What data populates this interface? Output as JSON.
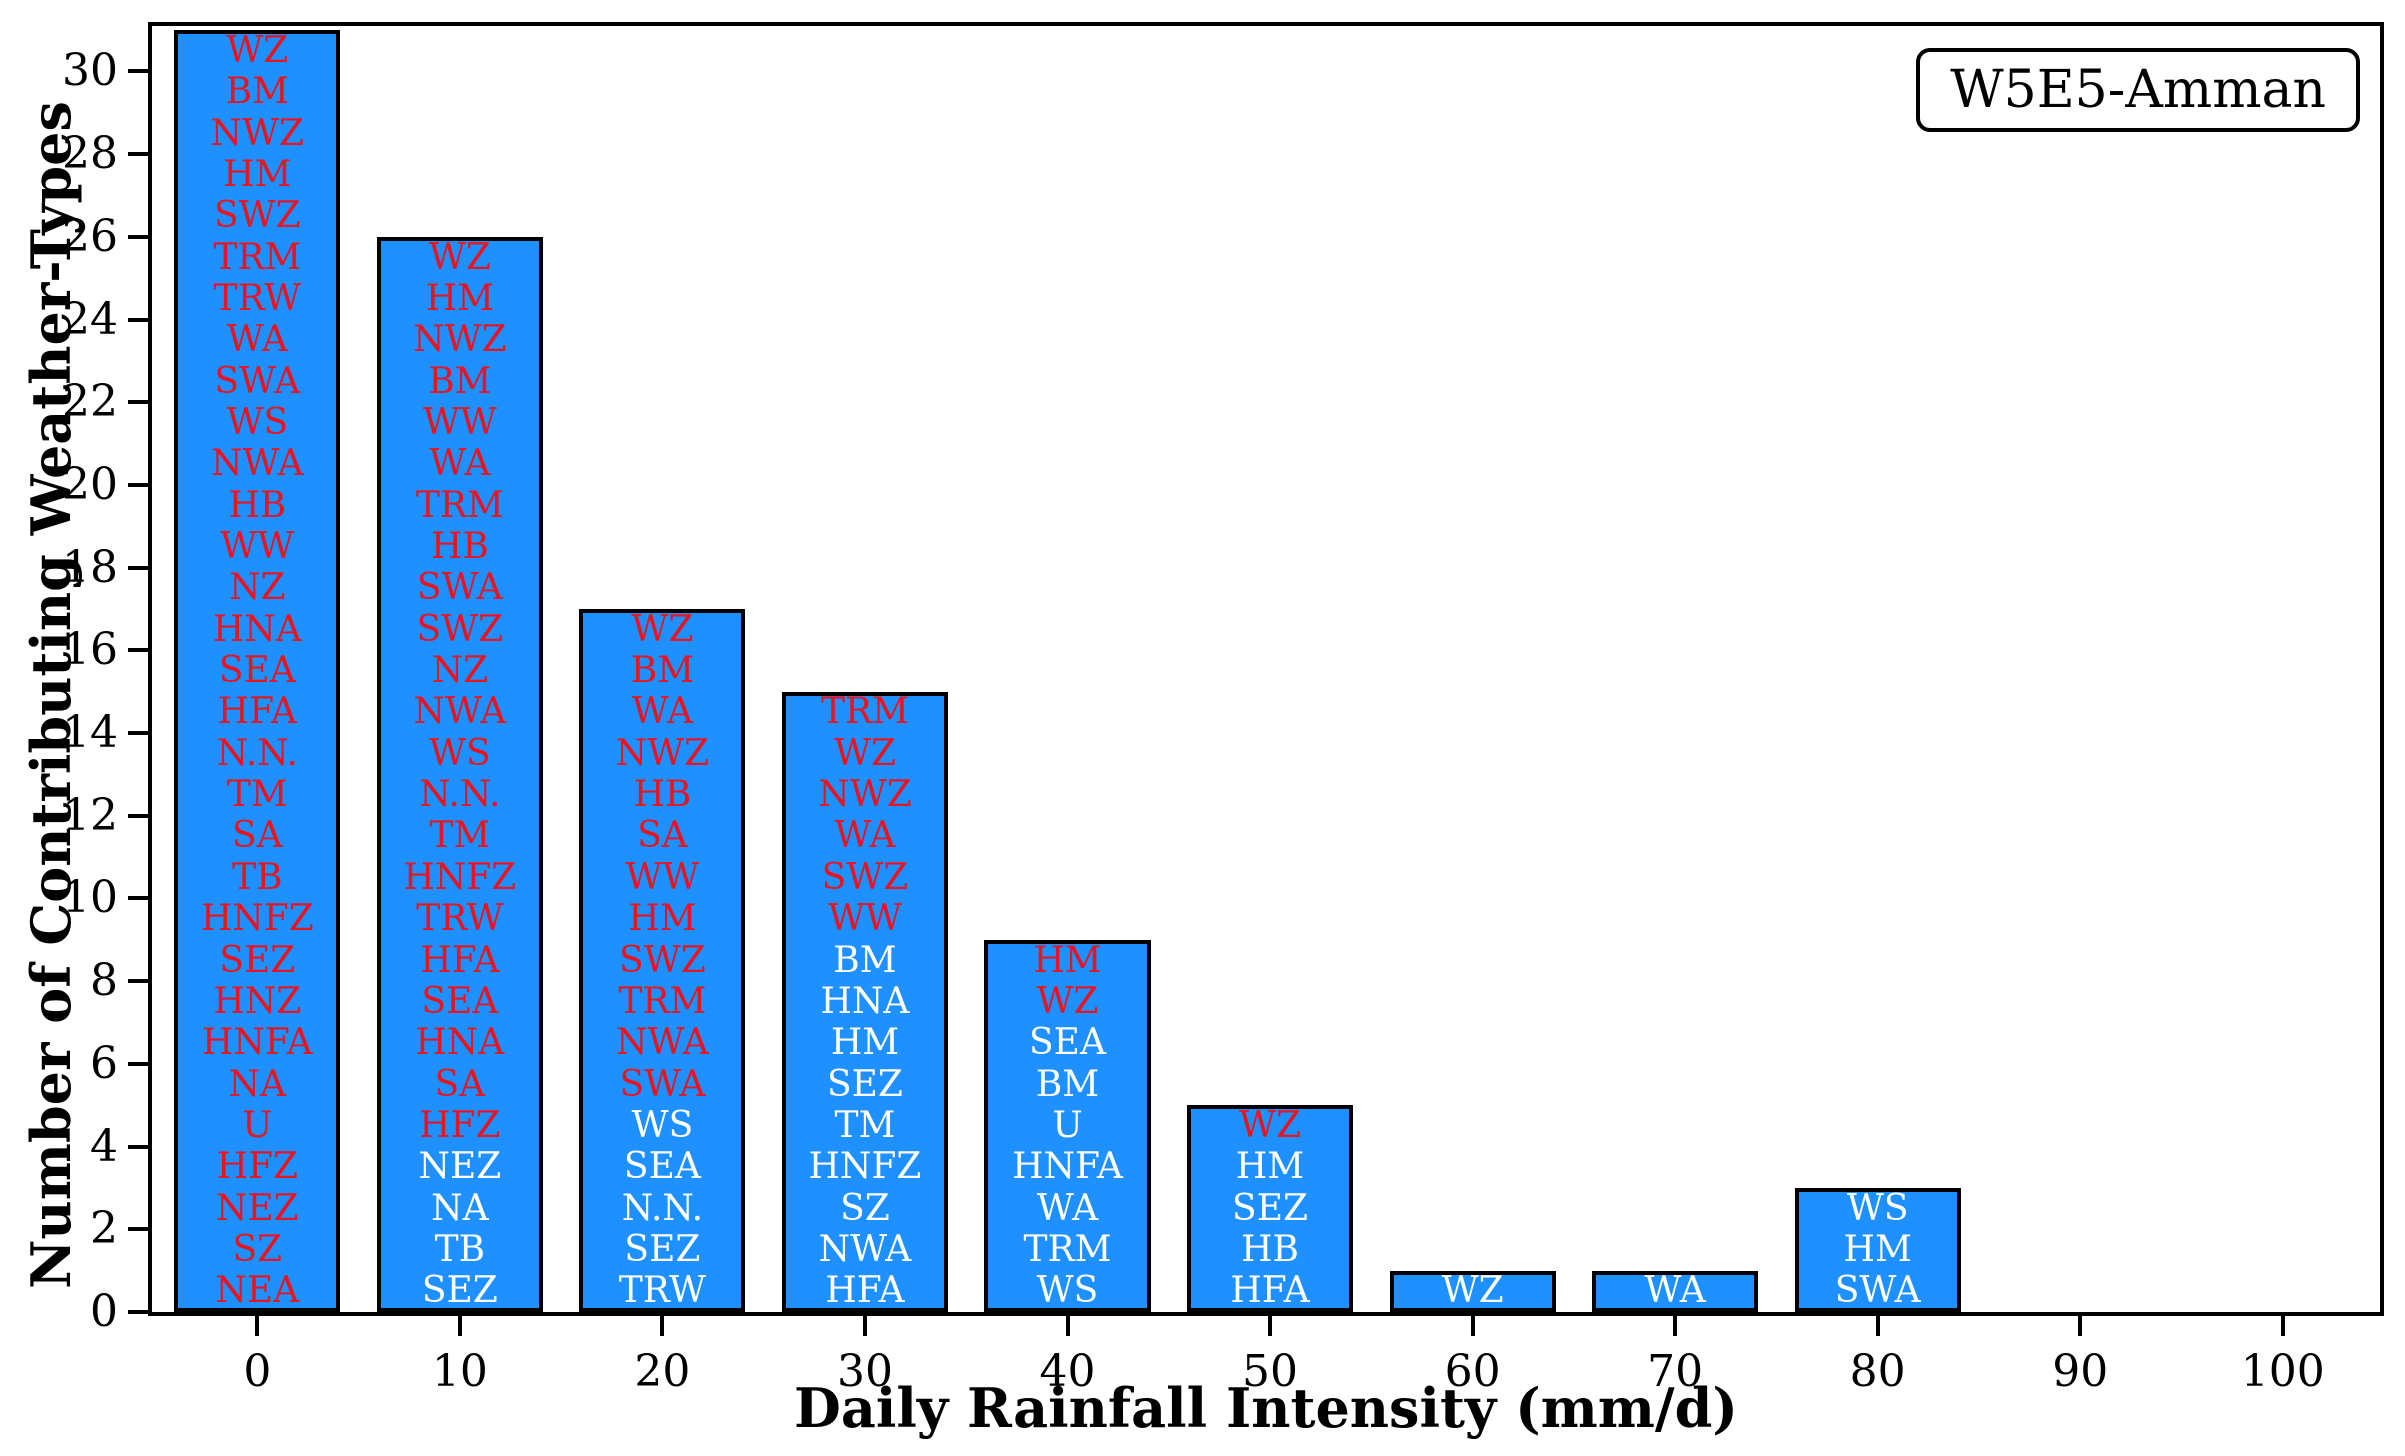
{
  "legend": {
    "label": "W5E5-Amman"
  },
  "chart_data": {
    "type": "bar",
    "title": "",
    "xlabel": "Daily Rainfall Intensity (mm/d)",
    "ylabel": "Number of Contributing Weather-Types",
    "legend_label": "W5E5-Amman",
    "grid": false,
    "legend_position": "upper right",
    "xlim": [
      -5.2,
      104.8
    ],
    "ylim": [
      0,
      31.1
    ],
    "xticks": [
      0,
      10,
      20,
      30,
      40,
      50,
      60,
      70,
      80,
      90,
      100
    ],
    "yticks": [
      0,
      2,
      4,
      6,
      8,
      10,
      12,
      14,
      16,
      18,
      20,
      22,
      24,
      26,
      28,
      30
    ],
    "bar_width": 8.2,
    "colors": {
      "bar_fill": "#1E90FF",
      "bar_edge": "#000000",
      "label_red": "#e8141e",
      "label_white": "#ffffff",
      "axis": "#000000",
      "background": "#ffffff"
    },
    "categories": [
      0,
      10,
      20,
      30,
      40,
      50,
      60,
      70,
      80
    ],
    "values": [
      31,
      26,
      17,
      15,
      9,
      5,
      1,
      1,
      3
    ],
    "bars": [
      {
        "x": 0,
        "count": 31,
        "labels": [
          {
            "text": "WZ",
            "color": "red"
          },
          {
            "text": "BM",
            "color": "red"
          },
          {
            "text": "NWZ",
            "color": "red"
          },
          {
            "text": "HM",
            "color": "red"
          },
          {
            "text": "SWZ",
            "color": "red"
          },
          {
            "text": "TRM",
            "color": "red"
          },
          {
            "text": "TRW",
            "color": "red"
          },
          {
            "text": "WA",
            "color": "red"
          },
          {
            "text": "SWA",
            "color": "red"
          },
          {
            "text": "WS",
            "color": "red"
          },
          {
            "text": "NWA",
            "color": "red"
          },
          {
            "text": "HB",
            "color": "red"
          },
          {
            "text": "WW",
            "color": "red"
          },
          {
            "text": "NZ",
            "color": "red"
          },
          {
            "text": "HNA",
            "color": "red"
          },
          {
            "text": "SEA",
            "color": "red"
          },
          {
            "text": "HFA",
            "color": "red"
          },
          {
            "text": "N.N.",
            "color": "red"
          },
          {
            "text": "TM",
            "color": "red"
          },
          {
            "text": "SA",
            "color": "red"
          },
          {
            "text": "TB",
            "color": "red"
          },
          {
            "text": "HNFZ",
            "color": "red"
          },
          {
            "text": "SEZ",
            "color": "red"
          },
          {
            "text": "HNZ",
            "color": "red"
          },
          {
            "text": "HNFA",
            "color": "red"
          },
          {
            "text": "NA",
            "color": "red"
          },
          {
            "text": "U",
            "color": "red"
          },
          {
            "text": "HFZ",
            "color": "red"
          },
          {
            "text": "NEZ",
            "color": "red"
          },
          {
            "text": "SZ",
            "color": "red"
          },
          {
            "text": "NEA",
            "color": "red"
          }
        ]
      },
      {
        "x": 10,
        "count": 26,
        "labels": [
          {
            "text": "WZ",
            "color": "red"
          },
          {
            "text": "HM",
            "color": "red"
          },
          {
            "text": "NWZ",
            "color": "red"
          },
          {
            "text": "BM",
            "color": "red"
          },
          {
            "text": "WW",
            "color": "red"
          },
          {
            "text": "WA",
            "color": "red"
          },
          {
            "text": "TRM",
            "color": "red"
          },
          {
            "text": "HB",
            "color": "red"
          },
          {
            "text": "SWA",
            "color": "red"
          },
          {
            "text": "SWZ",
            "color": "red"
          },
          {
            "text": "NZ",
            "color": "red"
          },
          {
            "text": "NWA",
            "color": "red"
          },
          {
            "text": "WS",
            "color": "red"
          },
          {
            "text": "N.N.",
            "color": "red"
          },
          {
            "text": "TM",
            "color": "red"
          },
          {
            "text": "HNFZ",
            "color": "red"
          },
          {
            "text": "TRW",
            "color": "red"
          },
          {
            "text": "HFA",
            "color": "red"
          },
          {
            "text": "SEA",
            "color": "red"
          },
          {
            "text": "HNA",
            "color": "red"
          },
          {
            "text": "SA",
            "color": "red"
          },
          {
            "text": "HFZ",
            "color": "red"
          },
          {
            "text": "NEZ",
            "color": "white"
          },
          {
            "text": "NA",
            "color": "white"
          },
          {
            "text": "TB",
            "color": "white"
          },
          {
            "text": "SEZ",
            "color": "white"
          }
        ]
      },
      {
        "x": 20,
        "count": 17,
        "labels": [
          {
            "text": "WZ",
            "color": "red"
          },
          {
            "text": "BM",
            "color": "red"
          },
          {
            "text": "WA",
            "color": "red"
          },
          {
            "text": "NWZ",
            "color": "red"
          },
          {
            "text": "HB",
            "color": "red"
          },
          {
            "text": "SA",
            "color": "red"
          },
          {
            "text": "WW",
            "color": "red"
          },
          {
            "text": "HM",
            "color": "red"
          },
          {
            "text": "SWZ",
            "color": "red"
          },
          {
            "text": "TRM",
            "color": "red"
          },
          {
            "text": "NWA",
            "color": "red"
          },
          {
            "text": "SWA",
            "color": "red"
          },
          {
            "text": "WS",
            "color": "white"
          },
          {
            "text": "SEA",
            "color": "white"
          },
          {
            "text": "N.N.",
            "color": "white"
          },
          {
            "text": "SEZ",
            "color": "white"
          },
          {
            "text": "TRW",
            "color": "white"
          }
        ]
      },
      {
        "x": 30,
        "count": 15,
        "labels": [
          {
            "text": "TRM",
            "color": "red"
          },
          {
            "text": "WZ",
            "color": "red"
          },
          {
            "text": "NWZ",
            "color": "red"
          },
          {
            "text": "WA",
            "color": "red"
          },
          {
            "text": "SWZ",
            "color": "red"
          },
          {
            "text": "WW",
            "color": "red"
          },
          {
            "text": "BM",
            "color": "white"
          },
          {
            "text": "HNA",
            "color": "white"
          },
          {
            "text": "HM",
            "color": "white"
          },
          {
            "text": "SEZ",
            "color": "white"
          },
          {
            "text": "TM",
            "color": "white"
          },
          {
            "text": "HNFZ",
            "color": "white"
          },
          {
            "text": "SZ",
            "color": "white"
          },
          {
            "text": "NWA",
            "color": "white"
          },
          {
            "text": "HFA",
            "color": "white"
          }
        ]
      },
      {
        "x": 40,
        "count": 9,
        "labels": [
          {
            "text": "HM",
            "color": "red"
          },
          {
            "text": "WZ",
            "color": "red"
          },
          {
            "text": "SEA",
            "color": "white"
          },
          {
            "text": "BM",
            "color": "white"
          },
          {
            "text": "U",
            "color": "white"
          },
          {
            "text": "HNFA",
            "color": "white"
          },
          {
            "text": "WA",
            "color": "white"
          },
          {
            "text": "TRM",
            "color": "white"
          },
          {
            "text": "WS",
            "color": "white"
          }
        ]
      },
      {
        "x": 50,
        "count": 5,
        "labels": [
          {
            "text": "WZ",
            "color": "red"
          },
          {
            "text": "HM",
            "color": "white"
          },
          {
            "text": "SEZ",
            "color": "white"
          },
          {
            "text": "HB",
            "color": "white"
          },
          {
            "text": "HFA",
            "color": "white"
          }
        ]
      },
      {
        "x": 60,
        "count": 1,
        "labels": [
          {
            "text": "WZ",
            "color": "white"
          }
        ]
      },
      {
        "x": 70,
        "count": 1,
        "labels": [
          {
            "text": "WA",
            "color": "white"
          }
        ]
      },
      {
        "x": 80,
        "count": 3,
        "labels": [
          {
            "text": "WS",
            "color": "white"
          },
          {
            "text": "HM",
            "color": "white"
          },
          {
            "text": "SWA",
            "color": "white"
          }
        ]
      }
    ]
  }
}
